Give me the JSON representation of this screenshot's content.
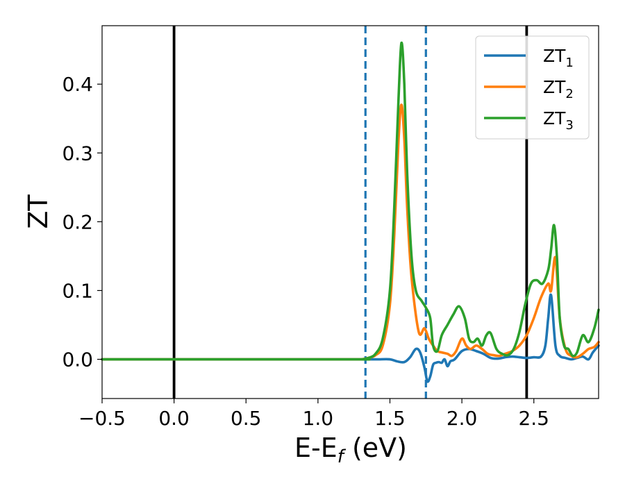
{
  "chart_data": {
    "type": "line",
    "xlabel": "E-E",
    "xlabel_sub": "f",
    "xlabel_unit": " (eV)",
    "ylabel": "ZT",
    "xlim": [
      -0.5,
      2.95
    ],
    "ylim": [
      -0.057,
      0.485
    ],
    "xticks": [
      -0.5,
      0.0,
      0.5,
      1.0,
      1.5,
      2.0,
      2.5
    ],
    "xtick_labels": [
      "−0.5",
      "0.0",
      "0.5",
      "1.0",
      "1.5",
      "2.0",
      "2.5"
    ],
    "yticks": [
      0.0,
      0.1,
      0.2,
      0.3,
      0.4
    ],
    "ytick_labels": [
      "0.0",
      "0.1",
      "0.2",
      "0.3",
      "0.4"
    ],
    "grid": false,
    "legend_position": "top-right",
    "vlines": [
      {
        "x": 0.0,
        "style": "solid",
        "color": "#000000"
      },
      {
        "x": 2.45,
        "style": "solid",
        "color": "#000000"
      },
      {
        "x": 1.33,
        "style": "dashed",
        "color": "#1f77b4"
      },
      {
        "x": 1.75,
        "style": "dashed",
        "color": "#1f77b4"
      }
    ],
    "series": [
      {
        "name": "ZT",
        "name_sub": "1",
        "color": "#1f77b4",
        "x": [
          -0.5,
          1.2,
          1.35,
          1.42,
          1.5,
          1.55,
          1.6,
          1.64,
          1.68,
          1.71,
          1.74,
          1.76,
          1.78,
          1.8,
          1.82,
          1.84,
          1.86,
          1.88,
          1.9,
          1.92,
          1.95,
          2.0,
          2.05,
          2.1,
          2.15,
          2.2,
          2.25,
          2.3,
          2.35,
          2.4,
          2.45,
          2.5,
          2.55,
          2.58,
          2.6,
          2.62,
          2.65,
          2.68,
          2.72,
          2.76,
          2.8,
          2.84,
          2.88,
          2.91,
          2.95
        ],
        "y": [
          0.0,
          0.0,
          0.0,
          0.0,
          0.0,
          -0.003,
          -0.004,
          0.003,
          0.015,
          0.01,
          -0.012,
          -0.032,
          -0.025,
          -0.008,
          -0.005,
          -0.004,
          -0.005,
          0.0,
          -0.01,
          -0.003,
          0.0,
          0.012,
          0.015,
          0.012,
          0.008,
          0.002,
          0.001,
          0.003,
          0.004,
          0.003,
          0.002,
          0.003,
          0.004,
          0.02,
          0.06,
          0.093,
          0.02,
          0.005,
          0.002,
          0.0,
          0.002,
          0.004,
          0.0,
          0.01,
          0.02
        ]
      },
      {
        "name": "ZT",
        "name_sub": "2",
        "color": "#ff7f0e",
        "x": [
          -0.5,
          1.2,
          1.3,
          1.35,
          1.4,
          1.45,
          1.5,
          1.53,
          1.56,
          1.58,
          1.6,
          1.62,
          1.65,
          1.7,
          1.74,
          1.77,
          1.8,
          1.83,
          1.86,
          1.9,
          1.93,
          1.96,
          2.0,
          2.03,
          2.06,
          2.1,
          2.14,
          2.18,
          2.22,
          2.26,
          2.3,
          2.35,
          2.4,
          2.45,
          2.5,
          2.55,
          2.6,
          2.62,
          2.65,
          2.68,
          2.72,
          2.76,
          2.8,
          2.84,
          2.88,
          2.92,
          2.95
        ],
        "y": [
          0.0,
          0.0,
          0.0,
          0.002,
          0.006,
          0.02,
          0.08,
          0.18,
          0.32,
          0.37,
          0.32,
          0.22,
          0.12,
          0.04,
          0.045,
          0.03,
          0.02,
          0.012,
          0.01,
          0.008,
          0.005,
          0.012,
          0.03,
          0.02,
          0.015,
          0.02,
          0.015,
          0.008,
          0.006,
          0.005,
          0.008,
          0.012,
          0.02,
          0.035,
          0.06,
          0.09,
          0.11,
          0.1,
          0.148,
          0.06,
          0.015,
          0.005,
          0.003,
          0.008,
          0.015,
          0.018,
          0.025
        ]
      },
      {
        "name": "ZT",
        "name_sub": "3",
        "color": "#2ca02c",
        "x": [
          -0.5,
          1.2,
          1.3,
          1.35,
          1.4,
          1.45,
          1.5,
          1.53,
          1.56,
          1.58,
          1.6,
          1.62,
          1.65,
          1.68,
          1.72,
          1.75,
          1.78,
          1.8,
          1.83,
          1.86,
          1.9,
          1.94,
          1.98,
          2.02,
          2.05,
          2.08,
          2.11,
          2.14,
          2.17,
          2.2,
          2.24,
          2.28,
          2.32,
          2.36,
          2.4,
          2.44,
          2.48,
          2.52,
          2.56,
          2.6,
          2.62,
          2.64,
          2.66,
          2.68,
          2.71,
          2.74,
          2.77,
          2.8,
          2.84,
          2.88,
          2.92,
          2.95
        ],
        "y": [
          0.0,
          0.0,
          0.0,
          0.002,
          0.008,
          0.03,
          0.1,
          0.22,
          0.38,
          0.46,
          0.4,
          0.27,
          0.15,
          0.1,
          0.085,
          0.075,
          0.06,
          0.02,
          0.012,
          0.035,
          0.05,
          0.065,
          0.077,
          0.06,
          0.03,
          0.025,
          0.03,
          0.02,
          0.035,
          0.038,
          0.015,
          0.008,
          0.006,
          0.015,
          0.04,
          0.08,
          0.11,
          0.115,
          0.11,
          0.13,
          0.16,
          0.195,
          0.15,
          0.06,
          0.02,
          0.015,
          0.005,
          0.01,
          0.035,
          0.025,
          0.045,
          0.072
        ]
      }
    ]
  }
}
